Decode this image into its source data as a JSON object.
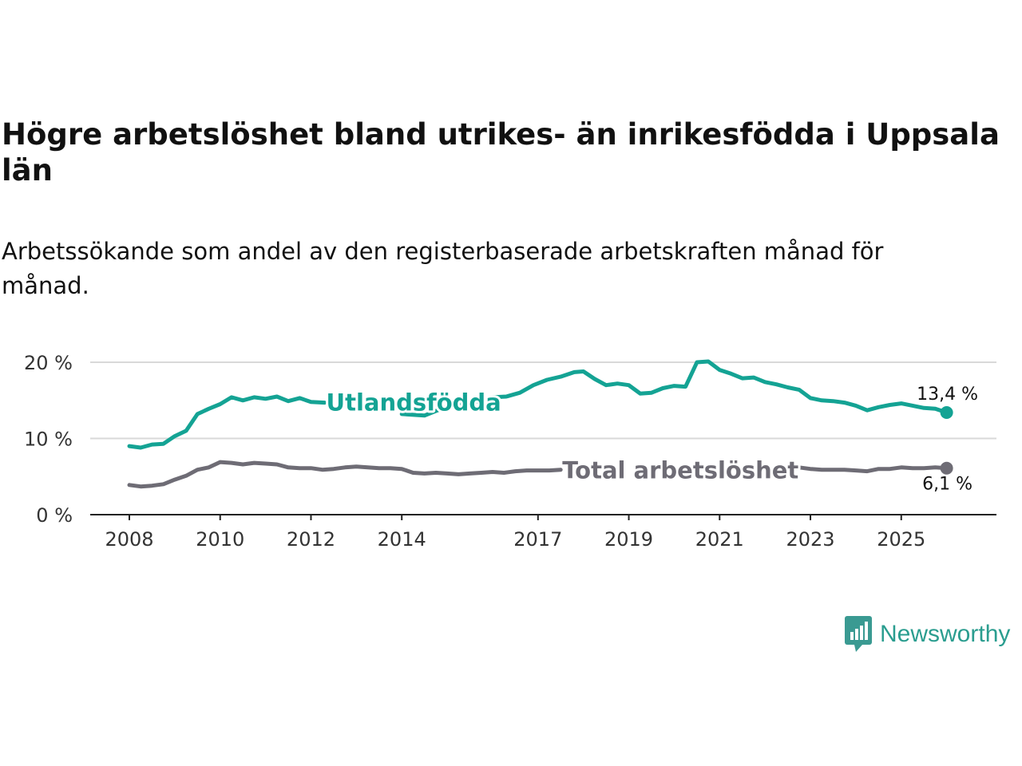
{
  "title": "Högre arbetslöshet bland utrikes- än inrikesfödda i Uppsala län",
  "subtitle": "Arbetssökande som andel av den registerbaserade arbetskraften månad för månad.",
  "brand": {
    "name": "Newsworthy",
    "icon": "newsworthy-logo-icon",
    "color": "#3a9a92"
  },
  "colors": {
    "foreign": "#14a394",
    "total": "#6e6c75",
    "grid": "#d9d9d9",
    "axis": "#222222"
  },
  "chart_data": {
    "type": "line",
    "title": "Högre arbetslöshet bland utrikes- än inrikesfödda i Uppsala län",
    "xlabel": "",
    "ylabel": "",
    "xlim": [
      2008,
      2026.2
    ],
    "ylim": [
      0,
      20
    ],
    "yticks": [
      0,
      10,
      20
    ],
    "ytick_labels": [
      "0 %",
      "10 %",
      "20 %"
    ],
    "xticks": [
      2008,
      2010,
      2012,
      2014,
      2017,
      2019,
      2021,
      2023,
      2025
    ],
    "xtick_labels": [
      "2008",
      "2010",
      "2012",
      "2014",
      "2017",
      "2019",
      "2021",
      "2023",
      "2025"
    ],
    "grid": true,
    "series": [
      {
        "name": "Utlandsfödda",
        "label_at": 2012.3,
        "end_label": "13,4 %",
        "points": [
          [
            2008.0,
            9.0
          ],
          [
            2008.25,
            8.8
          ],
          [
            2008.5,
            9.2
          ],
          [
            2008.75,
            9.3
          ],
          [
            2009.0,
            10.3
          ],
          [
            2009.25,
            11.0
          ],
          [
            2009.5,
            13.2
          ],
          [
            2009.75,
            13.9
          ],
          [
            2010.0,
            14.5
          ],
          [
            2010.25,
            15.4
          ],
          [
            2010.5,
            15.0
          ],
          [
            2010.75,
            15.4
          ],
          [
            2011.0,
            15.2
          ],
          [
            2011.25,
            15.5
          ],
          [
            2011.5,
            14.9
          ],
          [
            2011.75,
            15.3
          ],
          [
            2012.0,
            14.8
          ],
          [
            2012.3,
            14.7
          ],
          [
            2014.0,
            13.2
          ],
          [
            2014.5,
            13.0
          ],
          [
            2015.0,
            14.2
          ],
          [
            2015.5,
            14.6
          ],
          [
            2016.0,
            15.4
          ],
          [
            2016.3,
            15.5
          ],
          [
            2016.6,
            16.0
          ],
          [
            2016.9,
            17.0
          ],
          [
            2017.2,
            17.7
          ],
          [
            2017.5,
            18.1
          ],
          [
            2017.8,
            18.7
          ],
          [
            2018.0,
            18.8
          ],
          [
            2018.25,
            17.8
          ],
          [
            2018.5,
            17.0
          ],
          [
            2018.75,
            17.2
          ],
          [
            2019.0,
            17.0
          ],
          [
            2019.25,
            15.9
          ],
          [
            2019.5,
            16.0
          ],
          [
            2019.75,
            16.6
          ],
          [
            2020.0,
            16.9
          ],
          [
            2020.25,
            16.8
          ],
          [
            2020.5,
            20.0
          ],
          [
            2020.75,
            20.1
          ],
          [
            2021.0,
            19.0
          ],
          [
            2021.25,
            18.5
          ],
          [
            2021.5,
            17.9
          ],
          [
            2021.75,
            18.0
          ],
          [
            2022.0,
            17.4
          ],
          [
            2022.25,
            17.1
          ],
          [
            2022.5,
            16.7
          ],
          [
            2022.75,
            16.4
          ],
          [
            2023.0,
            15.3
          ],
          [
            2023.25,
            15.0
          ],
          [
            2023.5,
            14.9
          ],
          [
            2023.75,
            14.7
          ],
          [
            2024.0,
            14.3
          ],
          [
            2024.25,
            13.7
          ],
          [
            2024.5,
            14.1
          ],
          [
            2024.75,
            14.4
          ],
          [
            2025.0,
            14.6
          ],
          [
            2025.25,
            14.3
          ],
          [
            2025.5,
            14.0
          ],
          [
            2025.75,
            13.9
          ],
          [
            2026.0,
            13.4
          ]
        ]
      },
      {
        "name": "Total arbetslöshet",
        "label_at": 2017.5,
        "end_label": "6,1 %",
        "points": [
          [
            2008.0,
            3.9
          ],
          [
            2008.25,
            3.7
          ],
          [
            2008.5,
            3.8
          ],
          [
            2008.75,
            4.0
          ],
          [
            2009.0,
            4.6
          ],
          [
            2009.25,
            5.1
          ],
          [
            2009.5,
            5.9
          ],
          [
            2009.75,
            6.2
          ],
          [
            2010.0,
            6.9
          ],
          [
            2010.25,
            6.8
          ],
          [
            2010.5,
            6.6
          ],
          [
            2010.75,
            6.8
          ],
          [
            2011.0,
            6.7
          ],
          [
            2011.25,
            6.6
          ],
          [
            2011.5,
            6.2
          ],
          [
            2011.75,
            6.1
          ],
          [
            2012.0,
            6.1
          ],
          [
            2012.25,
            5.9
          ],
          [
            2012.5,
            6.0
          ],
          [
            2012.75,
            6.2
          ],
          [
            2013.0,
            6.3
          ],
          [
            2013.25,
            6.2
          ],
          [
            2013.5,
            6.1
          ],
          [
            2013.75,
            6.1
          ],
          [
            2014.0,
            6.0
          ],
          [
            2014.25,
            5.5
          ],
          [
            2014.5,
            5.4
          ],
          [
            2014.75,
            5.5
          ],
          [
            2015.0,
            5.4
          ],
          [
            2015.25,
            5.3
          ],
          [
            2015.5,
            5.4
          ],
          [
            2015.75,
            5.5
          ],
          [
            2016.0,
            5.6
          ],
          [
            2016.25,
            5.5
          ],
          [
            2016.5,
            5.7
          ],
          [
            2016.75,
            5.8
          ],
          [
            2017.0,
            5.8
          ],
          [
            2017.25,
            5.8
          ],
          [
            2017.5,
            5.9
          ],
          [
            2022.4,
            6.3
          ],
          [
            2022.75,
            6.2
          ],
          [
            2023.0,
            6.0
          ],
          [
            2023.25,
            5.9
          ],
          [
            2023.5,
            5.9
          ],
          [
            2023.75,
            5.9
          ],
          [
            2024.0,
            5.8
          ],
          [
            2024.25,
            5.7
          ],
          [
            2024.5,
            6.0
          ],
          [
            2024.75,
            6.0
          ],
          [
            2025.0,
            6.2
          ],
          [
            2025.25,
            6.1
          ],
          [
            2025.5,
            6.1
          ],
          [
            2025.75,
            6.2
          ],
          [
            2026.0,
            6.1
          ]
        ]
      }
    ]
  }
}
